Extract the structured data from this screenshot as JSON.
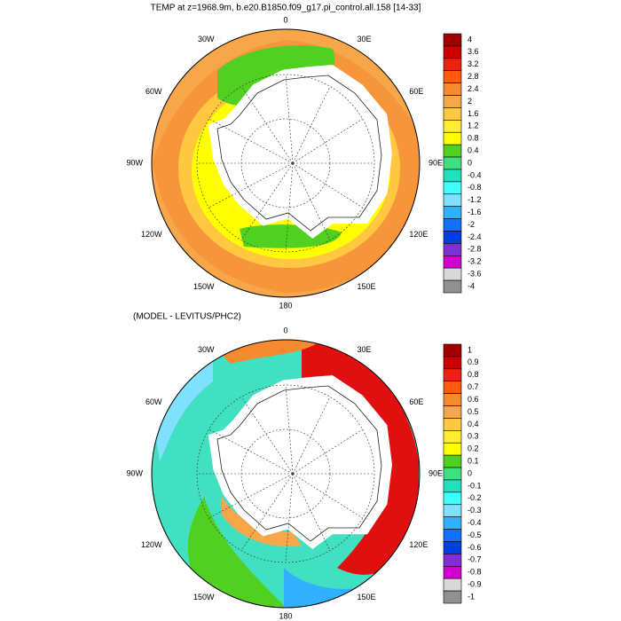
{
  "maps": [
    {
      "title": "TEMP at z=1968.9m, b.e20.B1850.f09_g17.pi_control.all.158 [14-33]",
      "lon_labels": [
        "0",
        "30E",
        "60E",
        "90E",
        "120E",
        "150E",
        "180",
        "150W",
        "120W",
        "90W",
        "60W",
        "30W"
      ],
      "colorbar": {
        "levels": [
          4,
          3.6,
          3.2,
          2.8,
          2.4,
          2,
          1.6,
          1.2,
          0.8,
          0.4,
          0,
          -0.4,
          -0.8,
          -1.2,
          -1.6,
          -2,
          -2.4,
          -2.8,
          -3.2,
          -3.6,
          -4
        ],
        "colors": [
          "#a00000",
          "#cc0000",
          "#f02010",
          "#ff5a10",
          "#f68a30",
          "#f7a64a",
          "#ffc840",
          "#ffee30",
          "#ffff00",
          "#50d020",
          "#40e080",
          "#20e0c0",
          "#40ffff",
          "#80e0ff",
          "#30b0ff",
          "#1070ff",
          "#0040e0",
          "#8030d0",
          "#d000d0",
          "#d8d8d8",
          "#909090"
        ]
      }
    },
    {
      "title": "(MODEL - LEVITUS/PHC2)",
      "lon_labels": [
        "0",
        "30E",
        "60E",
        "90E",
        "120E",
        "150E",
        "180",
        "150W",
        "120W",
        "90W",
        "60W",
        "30W"
      ],
      "colorbar": {
        "levels": [
          1,
          0.9,
          0.8,
          0.7,
          0.6,
          0.5,
          0.4,
          0.3,
          0.2,
          0.1,
          0,
          -0.1,
          -0.2,
          -0.3,
          -0.4,
          -0.5,
          -0.6,
          -0.7,
          -0.8,
          -0.9,
          -1
        ],
        "colors": [
          "#a00000",
          "#cc0000",
          "#f02010",
          "#ff5a10",
          "#f68a30",
          "#f7a64a",
          "#ffc840",
          "#ffee30",
          "#ffff00",
          "#50d020",
          "#40e080",
          "#20e0c0",
          "#40ffff",
          "#80e0ff",
          "#30b0ff",
          "#1070ff",
          "#0040e0",
          "#8030d0",
          "#d000d0",
          "#d8d8d8",
          "#909090"
        ]
      }
    }
  ]
}
